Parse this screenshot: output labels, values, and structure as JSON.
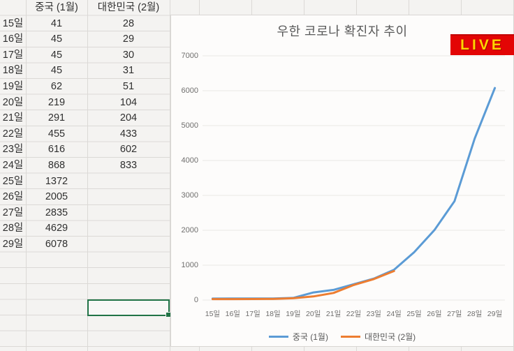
{
  "spreadsheet": {
    "columns": [
      "",
      "중국 (1월)",
      "대한민국 (2월)"
    ],
    "rows": [
      {
        "day": "15일",
        "china": "41",
        "korea": "28"
      },
      {
        "day": "16일",
        "china": "45",
        "korea": "29"
      },
      {
        "day": "17일",
        "china": "45",
        "korea": "30"
      },
      {
        "day": "18일",
        "china": "45",
        "korea": "31"
      },
      {
        "day": "19일",
        "china": "62",
        "korea": "51"
      },
      {
        "day": "20일",
        "china": "219",
        "korea": "104"
      },
      {
        "day": "21일",
        "china": "291",
        "korea": "204"
      },
      {
        "day": "22일",
        "china": "455",
        "korea": "433"
      },
      {
        "day": "23일",
        "china": "616",
        "korea": "602"
      },
      {
        "day": "24일",
        "china": "868",
        "korea": "833"
      },
      {
        "day": "25일",
        "china": "1372",
        "korea": ""
      },
      {
        "day": "26일",
        "china": "2005",
        "korea": ""
      },
      {
        "day": "27일",
        "china": "2835",
        "korea": ""
      },
      {
        "day": "28일",
        "china": "4629",
        "korea": ""
      },
      {
        "day": "29일",
        "china": "6078",
        "korea": ""
      }
    ],
    "selection": {
      "column": "대한민국 (2월)",
      "value": ""
    }
  },
  "live_badge": {
    "label": "LIVE",
    "bg_color": "#e30505",
    "text_color": "#ffd400"
  },
  "colors": {
    "selection_green": "#217346",
    "series_china_blue": "#5B9BD5",
    "series_korea_orange": "#ED7D31"
  },
  "chart_data": {
    "type": "line",
    "title": "우한 코로나 확진자 추이",
    "categories": [
      "15일",
      "16일",
      "17일",
      "18일",
      "19일",
      "20일",
      "21일",
      "22일",
      "23일",
      "24일",
      "25일",
      "26일",
      "27일",
      "28일",
      "29일"
    ],
    "series": [
      {
        "name": "중국 (1월)",
        "color": "#5B9BD5",
        "values": [
          41,
          45,
          45,
          45,
          62,
          219,
          291,
          455,
          616,
          868,
          1372,
          2005,
          2835,
          4629,
          6078
        ]
      },
      {
        "name": "대한민국 (2월)",
        "color": "#ED7D31",
        "values": [
          28,
          29,
          30,
          31,
          51,
          104,
          204,
          433,
          602,
          833
        ]
      }
    ],
    "xlabel": "",
    "ylabel": "",
    "ylim": [
      0,
      7000
    ],
    "y_ticks": [
      0,
      1000,
      2000,
      3000,
      4000,
      5000,
      6000,
      7000
    ],
    "grid": true,
    "legend_position": "bottom"
  }
}
